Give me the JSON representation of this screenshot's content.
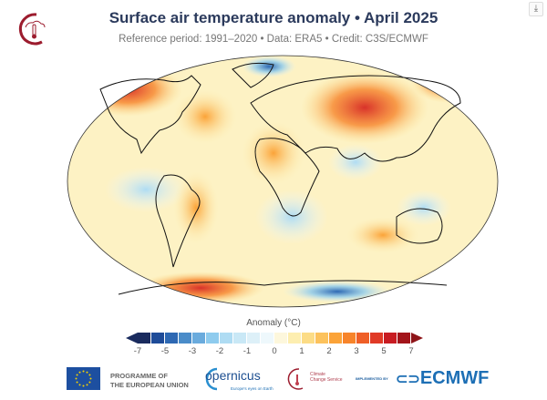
{
  "header": {
    "title": "Surface air temperature anomaly • April 2025",
    "subtitle": "Reference period: 1991–2020 • Data: ERA5 • Credit: C3S/ECMWF",
    "download_icon": "download-icon"
  },
  "colorbar": {
    "label": "Anomaly (°C)",
    "ticks": [
      "-7",
      "-5",
      "-3",
      "-2",
      "-1",
      "0",
      "1",
      "2",
      "3",
      "5",
      "7"
    ],
    "colors": [
      "#1a2b5e",
      "#1e4b98",
      "#2d68b3",
      "#4a8cc9",
      "#6aabdd",
      "#8ecbee",
      "#afdcf3",
      "#c9e8f6",
      "#ddf0f8",
      "#eef8fc",
      "#fdf7dc",
      "#fdeeb0",
      "#fcdc86",
      "#fcc25c",
      "#fba338",
      "#f7842a",
      "#ef5f27",
      "#e03a26",
      "#c81c22",
      "#a3151b"
    ],
    "arrow_low_color": "#1a2b5e",
    "arrow_high_color": "#8e1418"
  },
  "footer": {
    "eu_line1": "PROGRAMME OF",
    "eu_line2": "THE EUROPEAN UNION",
    "copernicus": "opernicus",
    "copernicus_tagline": "Europe's eyes on Earth",
    "ccs_line1": "Climate",
    "ccs_line2": "Change Service",
    "implemented_by": "IMPLEMENTED BY",
    "ecmwf": "ECMWF"
  }
}
